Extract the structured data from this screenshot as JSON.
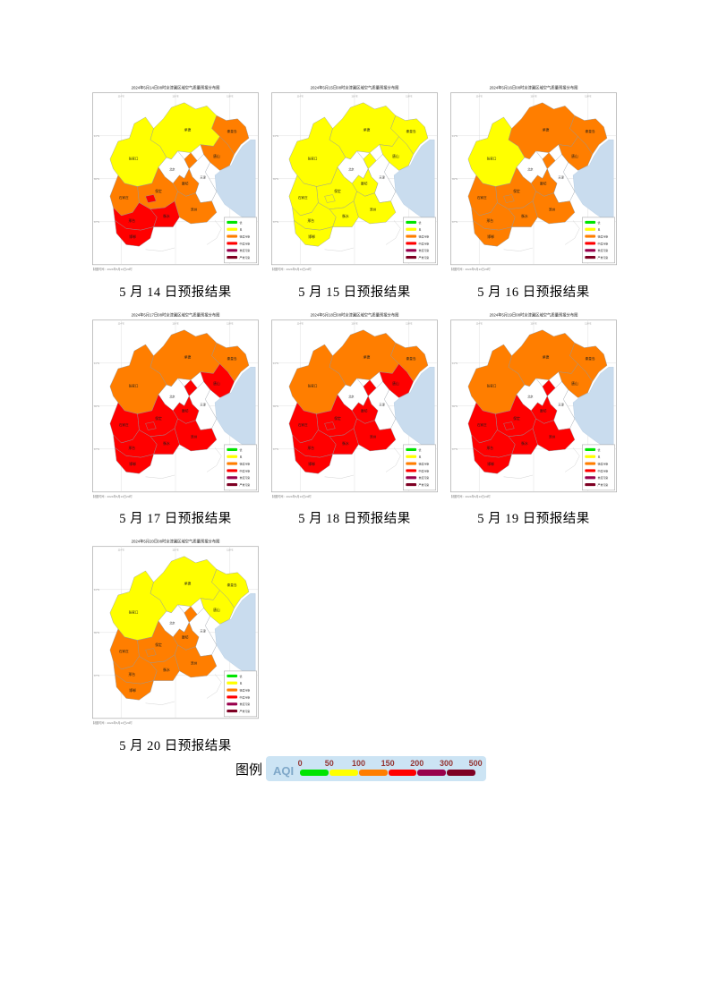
{
  "page": {
    "background": "#FFFFFF"
  },
  "aqi_palette": {
    "good": "#00E400",
    "moderate": "#FFFF00",
    "light": "#FF7E00",
    "medium": "#FF0000",
    "heavy": "#99004C",
    "severe": "#7E0023",
    "none": "#FFFFFF",
    "sea": "#C9DCEE"
  },
  "map_common": {
    "region_labels": {
      "zhangjiakou": "张家口",
      "chengde": "承德",
      "beijing": "北京",
      "tianjin": "天津",
      "tangshan": "唐山",
      "qinhuangdao": "秦皇岛",
      "langfang": "廊坊",
      "baoding": "保定",
      "shijiazhuang": "石家庄",
      "cangzhou": "沧州",
      "hengshui": "衡水",
      "xingtai": "邢台",
      "handan": "邯郸"
    },
    "aqi_levels": [
      {
        "name": "优",
        "key": "good"
      },
      {
        "name": "良",
        "key": "moderate"
      },
      {
        "name": "轻度污染",
        "key": "light"
      },
      {
        "name": "中度污染",
        "key": "medium"
      },
      {
        "name": "重度污染",
        "key": "heavy"
      },
      {
        "name": "严重污染",
        "key": "severe"
      }
    ],
    "lon_ticks": [
      "114°E",
      "116°E",
      "118°E"
    ],
    "lat_ticks": [
      "41°N",
      "39°N",
      "37°N"
    ],
    "footnote": "制图时间：2024年5月13日20时"
  },
  "maps": [
    {
      "title": "2024年5月14日08时京津冀区域空气质量预报分布图",
      "caption": "5 月 14 日预报结果",
      "regions": {
        "zhangjiakou": "moderate",
        "chengde": "moderate",
        "beijing": "none",
        "tianjin": "none",
        "sanhe": "light",
        "tangshan": "light",
        "qinhuangdao": "light",
        "langfang": "light",
        "baoding": "light",
        "dingzhou": "medium",
        "shijiazhuang": "light",
        "cangzhou": "light",
        "hengshui": "medium",
        "xingtai": "medium",
        "handan": "medium"
      }
    },
    {
      "title": "2024年5月15日08时京津冀区域空气质量预报分布图",
      "caption": "5 月 15 日预报结果",
      "regions": {
        "zhangjiakou": "moderate",
        "chengde": "moderate",
        "beijing": "none",
        "tianjin": "none",
        "sanhe": "moderate",
        "tangshan": "moderate",
        "qinhuangdao": "moderate",
        "langfang": "moderate",
        "baoding": "moderate",
        "dingzhou": "moderate",
        "shijiazhuang": "moderate",
        "cangzhou": "moderate",
        "hengshui": "moderate",
        "xingtai": "moderate",
        "handan": "moderate"
      }
    },
    {
      "title": "2024年5月16日08时京津冀区域空气质量预报分布图",
      "caption": "5 月 16 日预报结果",
      "regions": {
        "zhangjiakou": "moderate",
        "chengde": "light",
        "beijing": "none",
        "tianjin": "none",
        "sanhe": "light",
        "tangshan": "light",
        "qinhuangdao": "light",
        "langfang": "light",
        "baoding": "light",
        "dingzhou": "light",
        "shijiazhuang": "light",
        "cangzhou": "light",
        "hengshui": "light",
        "xingtai": "light",
        "handan": "light"
      }
    },
    {
      "title": "2024年5月17日08时京津冀区域空气质量预报分布图",
      "caption": "5 月 17 日预报结果",
      "regions": {
        "zhangjiakou": "light",
        "chengde": "light",
        "beijing": "none",
        "tianjin": "none",
        "sanhe": "medium",
        "tangshan": "medium",
        "qinhuangdao": "light",
        "langfang": "medium",
        "baoding": "medium",
        "dingzhou": "medium",
        "shijiazhuang": "medium",
        "cangzhou": "medium",
        "hengshui": "medium",
        "xingtai": "medium",
        "handan": "medium"
      }
    },
    {
      "title": "2024年5月18日08时京津冀区域空气质量预报分布图",
      "caption": "5 月 18 日预报结果",
      "regions": {
        "zhangjiakou": "light",
        "chengde": "light",
        "beijing": "none",
        "tianjin": "none",
        "sanhe": "medium",
        "tangshan": "medium",
        "qinhuangdao": "light",
        "langfang": "medium",
        "baoding": "medium",
        "dingzhou": "medium",
        "shijiazhuang": "medium",
        "cangzhou": "medium",
        "hengshui": "medium",
        "xingtai": "medium",
        "handan": "medium"
      }
    },
    {
      "title": "2024年5月19日08时京津冀区域空气质量预报分布图",
      "caption": "5 月 19 日预报结果",
      "regions": {
        "zhangjiakou": "light",
        "chengde": "light",
        "beijing": "none",
        "tianjin": "none",
        "sanhe": "medium",
        "tangshan": "light",
        "qinhuangdao": "light",
        "langfang": "medium",
        "baoding": "medium",
        "dingzhou": "medium",
        "shijiazhuang": "medium",
        "cangzhou": "medium",
        "hengshui": "medium",
        "xingtai": "medium",
        "handan": "medium"
      }
    },
    {
      "title": "2024年5月20日08时京津冀区域空气质量预报分布图",
      "caption": "5 月 20 日预报结果",
      "regions": {
        "zhangjiakou": "moderate",
        "chengde": "moderate",
        "beijing": "none",
        "tianjin": "none",
        "sanhe": "light",
        "tangshan": "moderate",
        "qinhuangdao": "moderate",
        "langfang": "light",
        "baoding": "light",
        "dingzhou": "light",
        "shijiazhuang": "light",
        "cangzhou": "light",
        "hengshui": "light",
        "xingtai": "light",
        "handan": "light"
      }
    }
  ],
  "legend": {
    "prefix": "图例",
    "aqi_label": "AQI",
    "aqi_label_color": "#7FA8C9",
    "box_bg": "#CCE4F4",
    "tick_color": "#943634",
    "ticks": [
      "0",
      "50",
      "100",
      "150",
      "200",
      "300",
      "500"
    ],
    "segment_levels": [
      "good",
      "moderate",
      "light",
      "medium",
      "heavy",
      "severe"
    ]
  }
}
